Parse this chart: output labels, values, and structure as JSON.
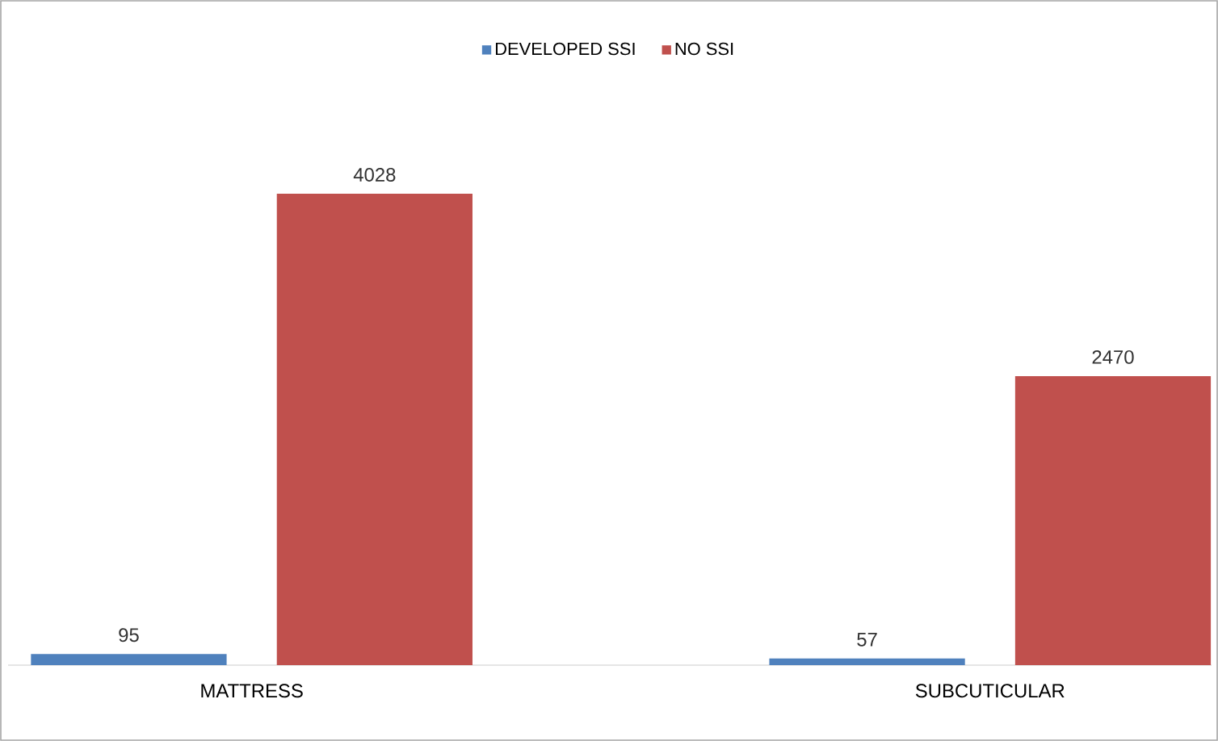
{
  "chart_data": {
    "type": "bar",
    "categories": [
      "MATTRESS",
      "SUBCUTICULAR"
    ],
    "series": [
      {
        "name": "DEVELOPED SSI",
        "color": "#4f81bd",
        "values": [
          95,
          57
        ]
      },
      {
        "name": "NO SSI",
        "color": "#c0504d",
        "values": [
          4028,
          2470
        ]
      }
    ],
    "data_labels": true,
    "legend": "top"
  }
}
